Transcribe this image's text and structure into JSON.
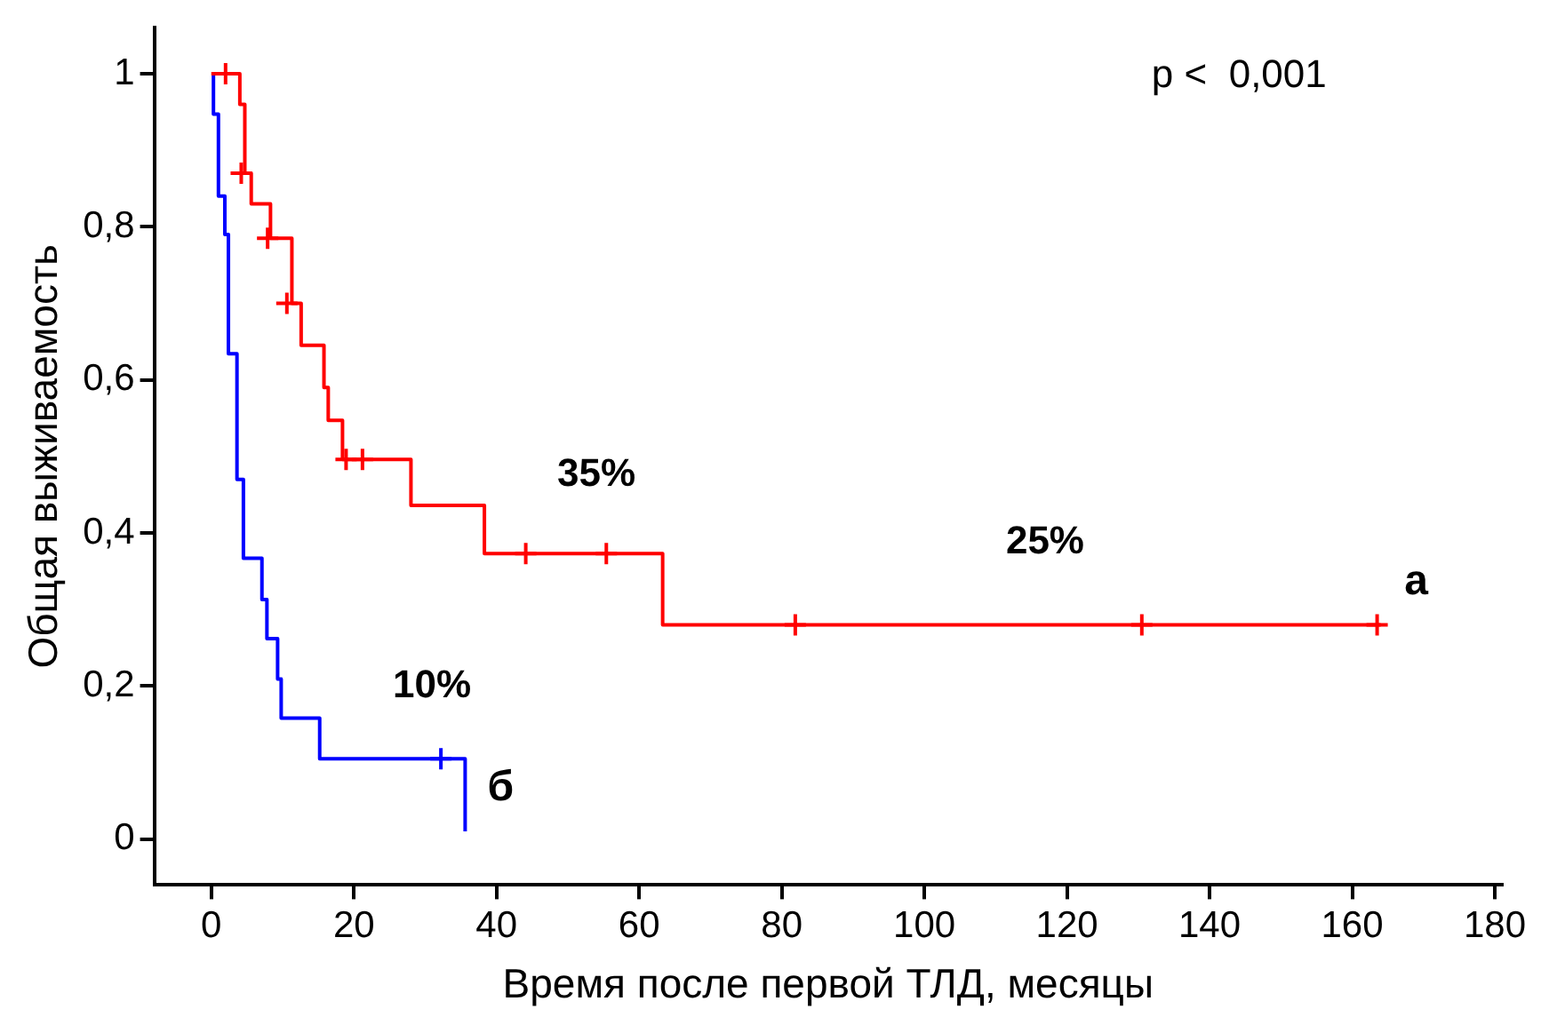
{
  "chart_data": {
    "type": "step",
    "xlabel": "Время после первой ТЛД, месяцы",
    "ylabel": "Общая выживаемость",
    "xlim": [
      -8,
      181
    ],
    "xticks": [
      0,
      20,
      40,
      60,
      80,
      100,
      120,
      140,
      160,
      180
    ],
    "ylim": [
      -0.06,
      1.06
    ],
    "yticks": [
      0,
      {
        "value": 0.2,
        "label": "0,2"
      },
      {
        "value": 0.4,
        "label": "0,4"
      },
      {
        "value": 0.6,
        "label": "0,6"
      },
      {
        "value": 0.8,
        "label": "0,8"
      },
      1
    ],
    "grid": false,
    "legend": false,
    "series": [
      {
        "name": "а",
        "color": "#ff0000",
        "x": [
          0,
          4.0,
          4.7,
          5.6,
          8.3,
          11.3,
          12.6,
          15.8,
          16.4,
          18.4,
          28,
          38.3,
          63.3,
          164
        ],
        "values": [
          1,
          0.96,
          0.87,
          0.83,
          0.785,
          0.7,
          0.645,
          0.59,
          0.547,
          0.496,
          0.436,
          0.373,
          0.28,
          0.28
        ]
      },
      {
        "name": "б",
        "color": "#0000ff",
        "x": [
          0.3,
          0.3,
          1.0,
          1.9,
          2.4,
          3.6,
          4.5,
          7.1,
          7.8,
          9.3,
          9.8,
          15.2,
          35.6,
          35.6
        ],
        "values": [
          1,
          0.947,
          0.84,
          0.79,
          0.634,
          0.47,
          0.367,
          0.313,
          0.262,
          0.209,
          0.158,
          0.105,
          0.105,
          0.01
        ]
      },
      {
        "type": "scatter",
        "marker": "cross",
        "color": "#ff0000",
        "x": [
          2,
          4.2,
          7.9,
          10.6,
          18.9,
          21.2,
          44.1,
          55.4,
          81.9,
          130.5,
          163.5
        ],
        "values": [
          1,
          0.87,
          0.785,
          0.7,
          0.496,
          0.496,
          0.373,
          0.373,
          0.28,
          0.28,
          0.28
        ]
      },
      {
        "type": "scatter",
        "marker": "cross",
        "color": "#0000ff",
        "x": [
          32.2
        ],
        "values": [
          0.105
        ]
      }
    ],
    "annotations": [
      "p <  0,001",
      "35%",
      "25%",
      "10%"
    ]
  }
}
